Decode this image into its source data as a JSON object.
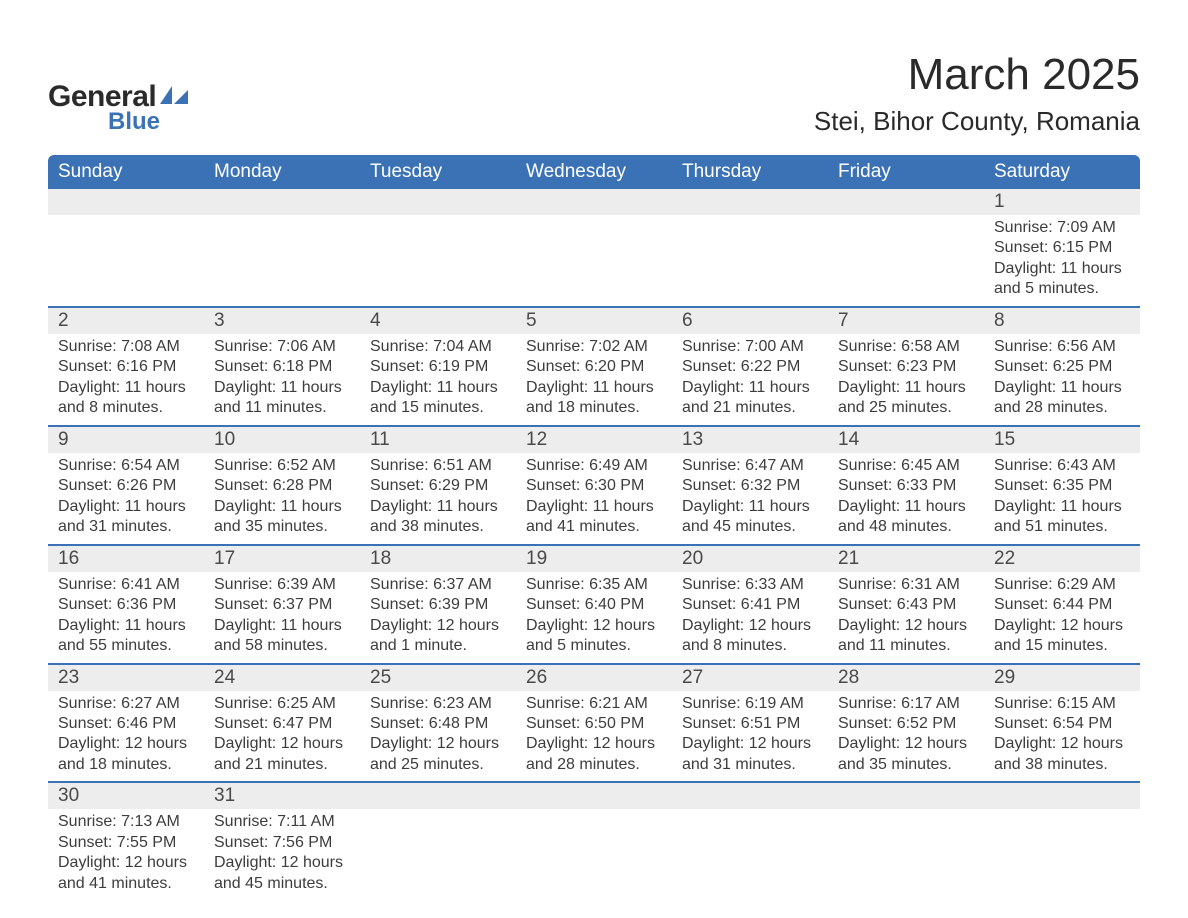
{
  "brand": {
    "text_general": "General",
    "text_blue": "Blue",
    "swoosh_color": "#3a72b5"
  },
  "title": "March 2025",
  "location": "Stei, Bihor County, Romania",
  "colors": {
    "header_bg": "#3a72b5",
    "header_text": "#ffffff",
    "daynum_bg": "#ededed",
    "row_divider": "#3a72b5",
    "body_text": "#3d3d3d",
    "page_bg": "#ffffff"
  },
  "typography": {
    "title_fontsize": 44,
    "location_fontsize": 26,
    "header_fontsize": 19,
    "daynum_fontsize": 19,
    "detail_fontsize": 16,
    "font_family": "Arial"
  },
  "weekdays": [
    "Sunday",
    "Monday",
    "Tuesday",
    "Wednesday",
    "Thursday",
    "Friday",
    "Saturday"
  ],
  "labels": {
    "sunrise": "Sunrise:",
    "sunset": "Sunset:",
    "daylight": "Daylight:"
  },
  "weeks": [
    [
      null,
      null,
      null,
      null,
      null,
      null,
      {
        "n": "1",
        "sunrise": "7:09 AM",
        "sunset": "6:15 PM",
        "daylight": "11 hours and 5 minutes."
      }
    ],
    [
      {
        "n": "2",
        "sunrise": "7:08 AM",
        "sunset": "6:16 PM",
        "daylight": "11 hours and 8 minutes."
      },
      {
        "n": "3",
        "sunrise": "7:06 AM",
        "sunset": "6:18 PM",
        "daylight": "11 hours and 11 minutes."
      },
      {
        "n": "4",
        "sunrise": "7:04 AM",
        "sunset": "6:19 PM",
        "daylight": "11 hours and 15 minutes."
      },
      {
        "n": "5",
        "sunrise": "7:02 AM",
        "sunset": "6:20 PM",
        "daylight": "11 hours and 18 minutes."
      },
      {
        "n": "6",
        "sunrise": "7:00 AM",
        "sunset": "6:22 PM",
        "daylight": "11 hours and 21 minutes."
      },
      {
        "n": "7",
        "sunrise": "6:58 AM",
        "sunset": "6:23 PM",
        "daylight": "11 hours and 25 minutes."
      },
      {
        "n": "8",
        "sunrise": "6:56 AM",
        "sunset": "6:25 PM",
        "daylight": "11 hours and 28 minutes."
      }
    ],
    [
      {
        "n": "9",
        "sunrise": "6:54 AM",
        "sunset": "6:26 PM",
        "daylight": "11 hours and 31 minutes."
      },
      {
        "n": "10",
        "sunrise": "6:52 AM",
        "sunset": "6:28 PM",
        "daylight": "11 hours and 35 minutes."
      },
      {
        "n": "11",
        "sunrise": "6:51 AM",
        "sunset": "6:29 PM",
        "daylight": "11 hours and 38 minutes."
      },
      {
        "n": "12",
        "sunrise": "6:49 AM",
        "sunset": "6:30 PM",
        "daylight": "11 hours and 41 minutes."
      },
      {
        "n": "13",
        "sunrise": "6:47 AM",
        "sunset": "6:32 PM",
        "daylight": "11 hours and 45 minutes."
      },
      {
        "n": "14",
        "sunrise": "6:45 AM",
        "sunset": "6:33 PM",
        "daylight": "11 hours and 48 minutes."
      },
      {
        "n": "15",
        "sunrise": "6:43 AM",
        "sunset": "6:35 PM",
        "daylight": "11 hours and 51 minutes."
      }
    ],
    [
      {
        "n": "16",
        "sunrise": "6:41 AM",
        "sunset": "6:36 PM",
        "daylight": "11 hours and 55 minutes."
      },
      {
        "n": "17",
        "sunrise": "6:39 AM",
        "sunset": "6:37 PM",
        "daylight": "11 hours and 58 minutes."
      },
      {
        "n": "18",
        "sunrise": "6:37 AM",
        "sunset": "6:39 PM",
        "daylight": "12 hours and 1 minute."
      },
      {
        "n": "19",
        "sunrise": "6:35 AM",
        "sunset": "6:40 PM",
        "daylight": "12 hours and 5 minutes."
      },
      {
        "n": "20",
        "sunrise": "6:33 AM",
        "sunset": "6:41 PM",
        "daylight": "12 hours and 8 minutes."
      },
      {
        "n": "21",
        "sunrise": "6:31 AM",
        "sunset": "6:43 PM",
        "daylight": "12 hours and 11 minutes."
      },
      {
        "n": "22",
        "sunrise": "6:29 AM",
        "sunset": "6:44 PM",
        "daylight": "12 hours and 15 minutes."
      }
    ],
    [
      {
        "n": "23",
        "sunrise": "6:27 AM",
        "sunset": "6:46 PM",
        "daylight": "12 hours and 18 minutes."
      },
      {
        "n": "24",
        "sunrise": "6:25 AM",
        "sunset": "6:47 PM",
        "daylight": "12 hours and 21 minutes."
      },
      {
        "n": "25",
        "sunrise": "6:23 AM",
        "sunset": "6:48 PM",
        "daylight": "12 hours and 25 minutes."
      },
      {
        "n": "26",
        "sunrise": "6:21 AM",
        "sunset": "6:50 PM",
        "daylight": "12 hours and 28 minutes."
      },
      {
        "n": "27",
        "sunrise": "6:19 AM",
        "sunset": "6:51 PM",
        "daylight": "12 hours and 31 minutes."
      },
      {
        "n": "28",
        "sunrise": "6:17 AM",
        "sunset": "6:52 PM",
        "daylight": "12 hours and 35 minutes."
      },
      {
        "n": "29",
        "sunrise": "6:15 AM",
        "sunset": "6:54 PM",
        "daylight": "12 hours and 38 minutes."
      }
    ],
    [
      {
        "n": "30",
        "sunrise": "7:13 AM",
        "sunset": "7:55 PM",
        "daylight": "12 hours and 41 minutes."
      },
      {
        "n": "31",
        "sunrise": "7:11 AM",
        "sunset": "7:56 PM",
        "daylight": "12 hours and 45 minutes."
      },
      null,
      null,
      null,
      null,
      null
    ]
  ]
}
